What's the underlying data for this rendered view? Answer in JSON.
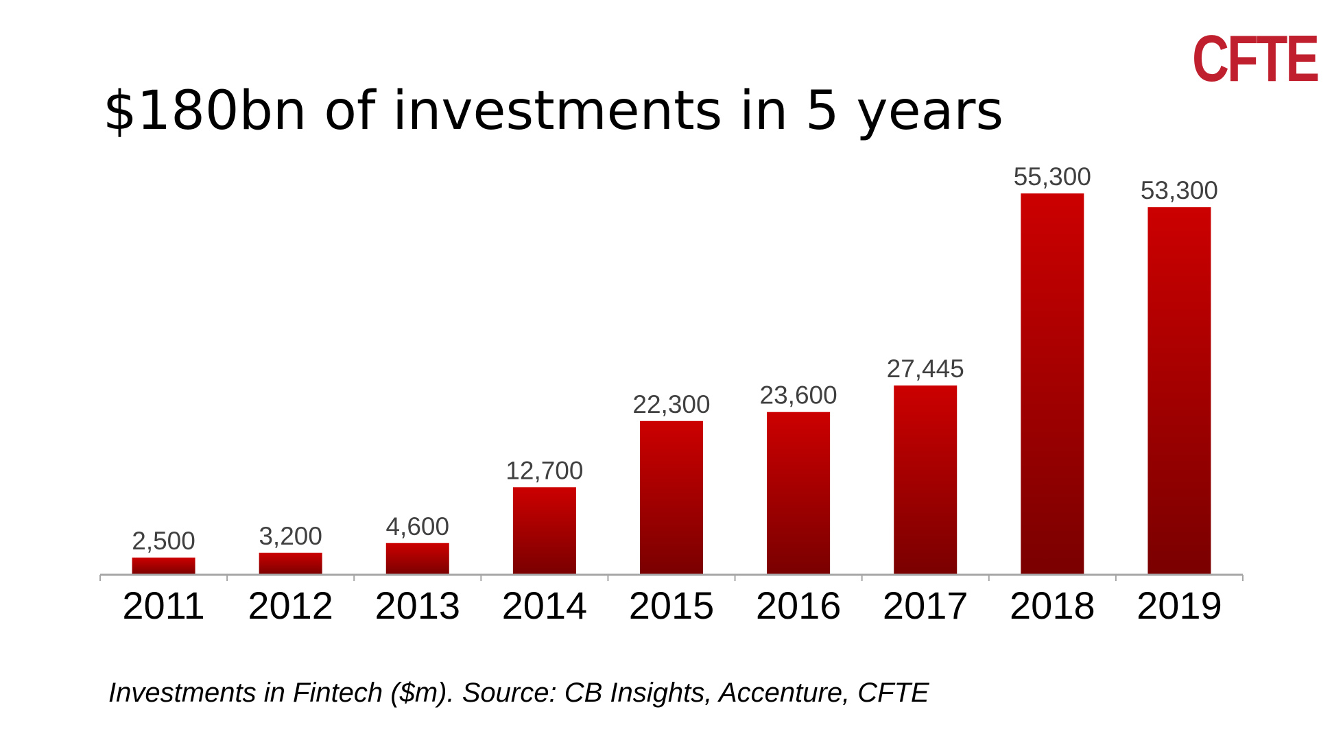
{
  "logo": {
    "text": "CFTE",
    "color": "#c0202e"
  },
  "title": "$180bn of investments in 5 years",
  "caption": "Investments in Fintech ($m). Source: CB Insights, Accenture, CFTE",
  "colors": {
    "bar_top": "#cc0000",
    "bar_bottom": "#7a0000",
    "axis": "#a6a6a6",
    "value_label": "#404040",
    "tick_label": "#000000"
  },
  "chart_data": {
    "type": "bar",
    "categories": [
      "2011",
      "2012",
      "2013",
      "2014",
      "2015",
      "2016",
      "2017",
      "2018",
      "2019"
    ],
    "values": [
      2500,
      3200,
      4600,
      12700,
      22300,
      23600,
      27445,
      55300,
      53300
    ],
    "value_labels": [
      "2,500",
      "3,200",
      "4,600",
      "12,700",
      "22,300",
      "23,600",
      "27,445",
      "55,300",
      "53,300"
    ],
    "ylim": [
      0,
      55300
    ],
    "grid": false,
    "legend": "none"
  }
}
